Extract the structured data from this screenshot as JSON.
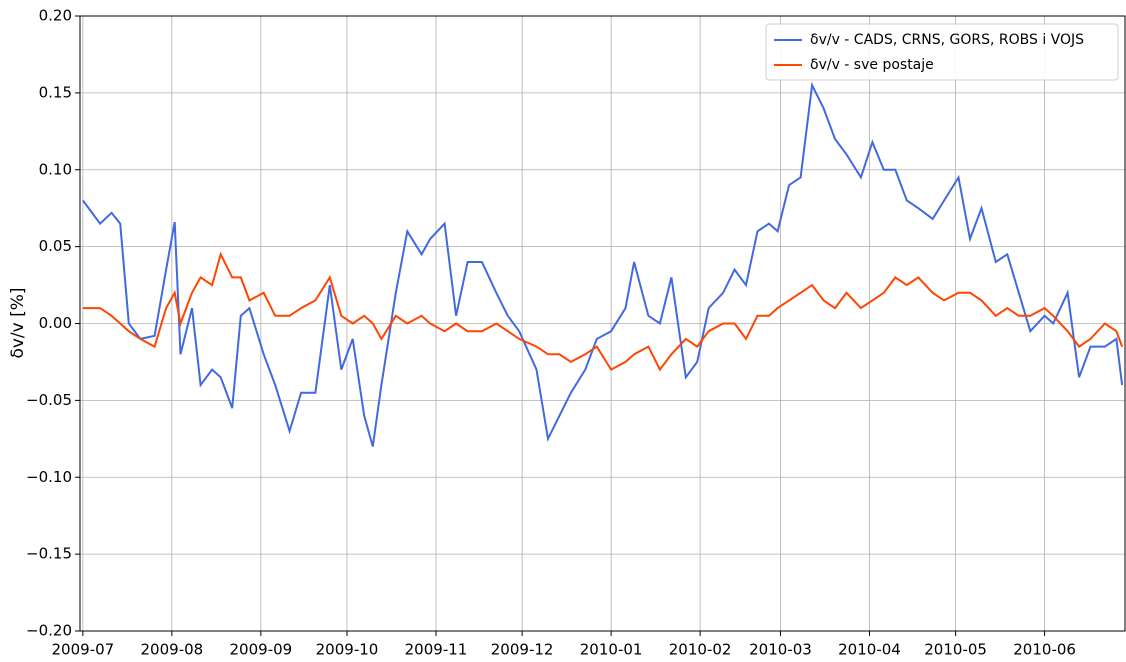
{
  "chart_data": {
    "type": "line",
    "y_label": "δv/v [%]",
    "x": [
      0,
      6,
      10,
      13,
      16,
      20,
      25,
      29,
      32,
      34,
      38,
      41,
      45,
      48,
      52,
      55,
      58,
      63,
      67,
      72,
      76,
      81,
      86,
      90,
      94,
      98,
      101,
      104,
      109,
      113,
      118,
      121,
      126,
      130,
      134,
      139,
      144,
      148,
      152,
      158,
      162,
      166,
      170,
      175,
      179,
      184,
      189,
      192,
      197,
      201,
      205,
      210,
      214,
      218,
      223,
      227,
      231,
      235,
      239,
      242,
      246,
      250,
      254,
      258,
      262,
      266,
      271,
      275,
      279,
      283,
      287,
      291,
      296,
      300,
      305,
      309,
      313,
      318,
      322,
      326,
      330,
      335,
      338,
      343,
      347,
      351,
      356,
      360,
      362
    ],
    "series": [
      {
        "name": "δv/v - CADS, CRNS, GORS, ROBS i VOJS",
        "color": "#4169e1",
        "values": [
          0.08,
          0.065,
          0.072,
          0.065,
          0.0,
          -0.01,
          -0.008,
          0.035,
          0.066,
          -0.02,
          0.01,
          -0.04,
          -0.03,
          -0.035,
          -0.055,
          0.005,
          0.01,
          -0.02,
          -0.04,
          -0.07,
          -0.045,
          -0.045,
          0.025,
          -0.03,
          -0.01,
          -0.06,
          -0.08,
          -0.04,
          0.02,
          0.06,
          0.045,
          0.055,
          0.065,
          0.005,
          0.04,
          0.04,
          0.02,
          0.005,
          -0.005,
          -0.03,
          -0.075,
          -0.06,
          -0.045,
          -0.03,
          -0.01,
          -0.005,
          0.01,
          0.04,
          0.005,
          0.0,
          0.03,
          -0.035,
          -0.025,
          0.01,
          0.02,
          0.035,
          0.025,
          0.06,
          0.065,
          0.06,
          0.09,
          0.095,
          0.155,
          0.14,
          0.12,
          0.11,
          0.095,
          0.118,
          0.1,
          0.1,
          0.08,
          0.075,
          0.068,
          0.08,
          0.095,
          0.055,
          0.075,
          0.04,
          0.045,
          0.02,
          -0.005,
          0.005,
          0.0,
          0.02,
          -0.035,
          -0.015,
          -0.015,
          -0.01,
          -0.04
        ]
      },
      {
        "name": "δv/v - sve postaje",
        "color": "#ff4500",
        "values": [
          0.01,
          0.01,
          0.005,
          0.0,
          -0.005,
          -0.01,
          -0.015,
          0.01,
          0.02,
          0.0,
          0.02,
          0.03,
          0.025,
          0.045,
          0.03,
          0.03,
          0.015,
          0.02,
          0.005,
          0.005,
          0.01,
          0.015,
          0.03,
          0.005,
          0.0,
          0.005,
          0.0,
          -0.01,
          0.005,
          0.0,
          0.005,
          0.0,
          -0.005,
          0.0,
          -0.005,
          -0.005,
          0.0,
          -0.005,
          -0.01,
          -0.015,
          -0.02,
          -0.02,
          -0.025,
          -0.02,
          -0.015,
          -0.03,
          -0.025,
          -0.02,
          -0.015,
          -0.03,
          -0.02,
          -0.01,
          -0.015,
          -0.005,
          0.0,
          0.0,
          -0.01,
          0.005,
          0.005,
          0.01,
          0.015,
          0.02,
          0.025,
          0.015,
          0.01,
          0.02,
          0.01,
          0.015,
          0.02,
          0.03,
          0.025,
          0.03,
          0.02,
          0.015,
          0.02,
          0.02,
          0.015,
          0.005,
          0.01,
          0.005,
          0.005,
          0.01,
          0.005,
          -0.005,
          -0.015,
          -0.01,
          0.0,
          -0.005,
          -0.015
        ]
      }
    ],
    "xlim": [
      -1,
      363
    ],
    "xticks": [
      {
        "value": 0,
        "label": "2009-07"
      },
      {
        "value": 31,
        "label": "2009-08"
      },
      {
        "value": 62,
        "label": "2009-09"
      },
      {
        "value": 92,
        "label": "2009-10"
      },
      {
        "value": 123,
        "label": "2009-11"
      },
      {
        "value": 153,
        "label": "2009-12"
      },
      {
        "value": 184,
        "label": "2010-01"
      },
      {
        "value": 215,
        "label": "2010-02"
      },
      {
        "value": 243,
        "label": "2010-03"
      },
      {
        "value": 274,
        "label": "2010-04"
      },
      {
        "value": 304,
        "label": "2010-05"
      },
      {
        "value": 335,
        "label": "2010-06"
      }
    ],
    "ylim": [
      -0.2,
      0.2
    ],
    "yticks": [
      {
        "value": -0.2,
        "label": "−0.20"
      },
      {
        "value": -0.15,
        "label": "−0.15"
      },
      {
        "value": -0.1,
        "label": "−0.10"
      },
      {
        "value": -0.05,
        "label": "−0.05"
      },
      {
        "value": 0,
        "label": "0.00"
      },
      {
        "value": 0.05,
        "label": "0.05"
      },
      {
        "value": 0.1,
        "label": "0.10"
      },
      {
        "value": 0.15,
        "label": "0.15"
      },
      {
        "value": 0.2,
        "label": "0.20"
      }
    ],
    "grid": true,
    "legend": "upper right"
  }
}
